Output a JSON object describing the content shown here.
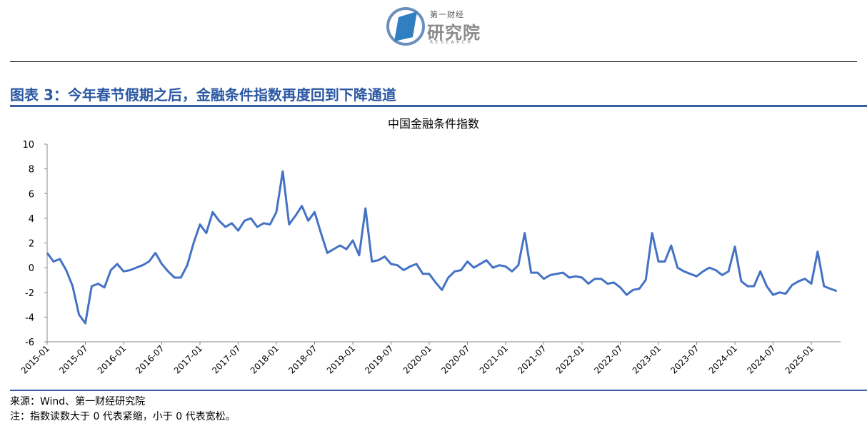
{
  "header": {
    "logo_small": "第一财经",
    "logo_big": "研究院",
    "logo_en": "RESEARCH"
  },
  "figure_title": "图表 3：今年春节假期之后，金融条件指数再度回到下降通道",
  "source": "来源：Wind、第一财经研究院",
  "note": "注：指数读数大于 0 代表紧缩，小于 0 代表宽松。",
  "colors": {
    "line": "#4472C4",
    "accent": "#2b57a3"
  },
  "chart_data": {
    "type": "line",
    "title": "中国金融条件指数",
    "xlabel": "",
    "ylabel": "",
    "ylim": [
      -6,
      10
    ],
    "yticks": [
      -6,
      -4,
      -2,
      0,
      2,
      4,
      6,
      8,
      10
    ],
    "xticks": [
      "2015-01",
      "2015-07",
      "2016-01",
      "2016-07",
      "2017-01",
      "2017-07",
      "2018-01",
      "2018-07",
      "2019-01",
      "2019-07",
      "2020-01",
      "2020-07",
      "2021-01",
      "2021-07",
      "2022-01",
      "2022-07",
      "2023-01",
      "2023-07",
      "2024-01",
      "2024-07",
      "2025-01"
    ],
    "grid": false,
    "legend": "none",
    "series": [
      {
        "name": "",
        "x": [
          "2015-01",
          "2015-02",
          "2015-03",
          "2015-04",
          "2015-05",
          "2015-06",
          "2015-07",
          "2015-08",
          "2015-09",
          "2015-10",
          "2015-11",
          "2015-12",
          "2016-01",
          "2016-02",
          "2016-03",
          "2016-04",
          "2016-05",
          "2016-06",
          "2016-07",
          "2016-08",
          "2016-09",
          "2016-10",
          "2016-11",
          "2016-12",
          "2017-01",
          "2017-02",
          "2017-03",
          "2017-04",
          "2017-05",
          "2017-06",
          "2017-07",
          "2017-08",
          "2017-09",
          "2017-10",
          "2017-11",
          "2017-12",
          "2018-01",
          "2018-02",
          "2018-03",
          "2018-04",
          "2018-05",
          "2018-06",
          "2018-07",
          "2018-08",
          "2018-09",
          "2018-10",
          "2018-11",
          "2018-12",
          "2019-01",
          "2019-02",
          "2019-03",
          "2019-04",
          "2019-05",
          "2019-06",
          "2019-07",
          "2019-08",
          "2019-09",
          "2019-10",
          "2019-11",
          "2019-12",
          "2020-01",
          "2020-02",
          "2020-03",
          "2020-04",
          "2020-05",
          "2020-06",
          "2020-07",
          "2020-08",
          "2020-09",
          "2020-10",
          "2020-11",
          "2020-12",
          "2021-01",
          "2021-02",
          "2021-03",
          "2021-04",
          "2021-05",
          "2021-06",
          "2021-07",
          "2021-08",
          "2021-09",
          "2021-10",
          "2021-11",
          "2021-12",
          "2022-01",
          "2022-02",
          "2022-03",
          "2022-04",
          "2022-05",
          "2022-06",
          "2022-07",
          "2022-08",
          "2022-09",
          "2022-10",
          "2022-11",
          "2022-12",
          "2023-01",
          "2023-02",
          "2023-03",
          "2023-04",
          "2023-05",
          "2023-06",
          "2023-07",
          "2023-08",
          "2023-09",
          "2023-10",
          "2023-11",
          "2023-12",
          "2024-01",
          "2024-02",
          "2024-03",
          "2024-04",
          "2024-05",
          "2024-06",
          "2024-07",
          "2024-08",
          "2024-09",
          "2024-10",
          "2024-11",
          "2024-12",
          "2025-01",
          "2025-02",
          "2025-03",
          "2025-04",
          "2025-05"
        ],
        "values": [
          1.2,
          0.5,
          0.7,
          -0.2,
          -1.5,
          -3.8,
          -4.5,
          -1.5,
          -1.3,
          -1.6,
          -0.2,
          0.3,
          -0.3,
          -0.2,
          0.0,
          0.2,
          0.5,
          1.2,
          0.3,
          -0.3,
          -0.8,
          -0.8,
          0.2,
          2.0,
          3.5,
          2.8,
          4.5,
          3.8,
          3.3,
          3.6,
          3.0,
          3.8,
          4.0,
          3.3,
          3.6,
          3.5,
          4.5,
          7.8,
          3.5,
          4.2,
          5.0,
          3.8,
          4.5,
          2.8,
          1.2,
          1.5,
          1.8,
          1.5,
          2.2,
          1.0,
          4.8,
          0.5,
          0.6,
          0.9,
          0.3,
          0.2,
          -0.2,
          0.1,
          0.3,
          -0.5,
          -0.5,
          -1.2,
          -1.8,
          -0.8,
          -0.3,
          -0.2,
          0.5,
          0.0,
          0.3,
          0.6,
          0.0,
          0.2,
          0.1,
          -0.3,
          0.2,
          2.8,
          -0.4,
          -0.4,
          -0.9,
          -0.6,
          -0.5,
          -0.4,
          -0.8,
          -0.7,
          -0.8,
          -1.3,
          -0.9,
          -0.9,
          -1.3,
          -1.2,
          -1.6,
          -2.2,
          -1.8,
          -1.7,
          -1.0,
          2.8,
          0.5,
          0.5,
          1.8,
          0.0,
          -0.3,
          -0.5,
          -0.7,
          -0.3,
          0.0,
          -0.2,
          -0.6,
          -0.3,
          1.7,
          -1.1,
          -1.5,
          -1.5,
          -0.3,
          -1.5,
          -2.2,
          -2.0,
          -2.1,
          -1.4,
          -1.1,
          -0.9,
          -1.3,
          1.3,
          -1.5,
          -1.7,
          -1.9
        ]
      }
    ]
  }
}
